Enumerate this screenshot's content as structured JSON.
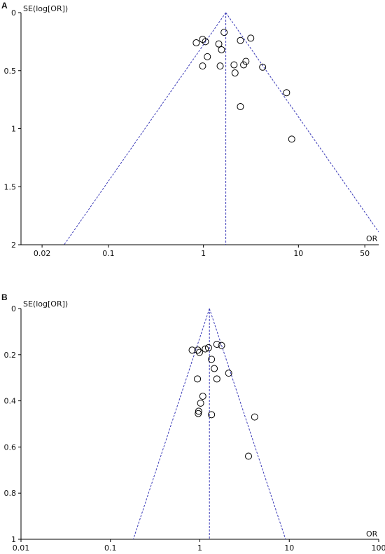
{
  "chart_data": [
    {
      "type": "scatter",
      "panel_label": "A",
      "ylabel": "SE(log[OR])",
      "xlabel": "OR",
      "x_scale": "log",
      "y_inverted": true,
      "xlim": [
        0.012,
        70
      ],
      "ylim": [
        0,
        2
      ],
      "x_ticks": [
        0.02,
        0.1,
        1,
        10,
        50
      ],
      "x_tick_labels": [
        "0.02",
        "0.1",
        "1",
        "10",
        "50"
      ],
      "y_ticks": [
        0,
        0.5,
        1,
        1.5,
        2
      ],
      "y_tick_labels": [
        "0",
        "0.5",
        "1",
        "1.5",
        "2"
      ],
      "pooled_or": 1.72,
      "funnel_se_max": 2,
      "points": [
        {
          "x": 0.84,
          "y": 0.26
        },
        {
          "x": 0.98,
          "y": 0.23
        },
        {
          "x": 1.05,
          "y": 0.25
        },
        {
          "x": 1.65,
          "y": 0.17
        },
        {
          "x": 1.45,
          "y": 0.27
        },
        {
          "x": 1.55,
          "y": 0.32
        },
        {
          "x": 2.45,
          "y": 0.24
        },
        {
          "x": 3.15,
          "y": 0.22
        },
        {
          "x": 1.1,
          "y": 0.38
        },
        {
          "x": 0.98,
          "y": 0.46
        },
        {
          "x": 1.5,
          "y": 0.46
        },
        {
          "x": 2.1,
          "y": 0.45
        },
        {
          "x": 2.15,
          "y": 0.52
        },
        {
          "x": 2.8,
          "y": 0.42
        },
        {
          "x": 2.65,
          "y": 0.45
        },
        {
          "x": 4.2,
          "y": 0.47
        },
        {
          "x": 7.5,
          "y": 0.69
        },
        {
          "x": 2.45,
          "y": 0.81
        },
        {
          "x": 8.5,
          "y": 1.09
        }
      ]
    },
    {
      "type": "scatter",
      "panel_label": "B",
      "ylabel": "SE(log[OR])",
      "xlabel": "OR",
      "x_scale": "log",
      "y_inverted": true,
      "xlim": [
        0.01,
        100
      ],
      "ylim": [
        0,
        1
      ],
      "x_ticks": [
        0.01,
        0.1,
        1,
        10,
        100
      ],
      "x_tick_labels": [
        "0.01",
        "0.1",
        "1",
        "10",
        "100"
      ],
      "y_ticks": [
        0,
        0.2,
        0.4,
        0.6,
        0.8,
        1
      ],
      "y_tick_labels": [
        "0",
        "0.2",
        "0.4",
        "0.6",
        "0.8",
        "1"
      ],
      "pooled_or": 1.28,
      "funnel_se_max": 1,
      "points": [
        {
          "x": 0.82,
          "y": 0.18
        },
        {
          "x": 0.95,
          "y": 0.18
        },
        {
          "x": 0.99,
          "y": 0.19
        },
        {
          "x": 1.15,
          "y": 0.175
        },
        {
          "x": 1.25,
          "y": 0.17
        },
        {
          "x": 1.55,
          "y": 0.155
        },
        {
          "x": 1.75,
          "y": 0.16
        },
        {
          "x": 1.35,
          "y": 0.22
        },
        {
          "x": 1.45,
          "y": 0.26
        },
        {
          "x": 2.1,
          "y": 0.28
        },
        {
          "x": 0.94,
          "y": 0.305
        },
        {
          "x": 1.55,
          "y": 0.305
        },
        {
          "x": 1.08,
          "y": 0.38
        },
        {
          "x": 1.02,
          "y": 0.41
        },
        {
          "x": 0.97,
          "y": 0.445
        },
        {
          "x": 0.96,
          "y": 0.455
        },
        {
          "x": 1.35,
          "y": 0.46
        },
        {
          "x": 4.1,
          "y": 0.47
        },
        {
          "x": 3.5,
          "y": 0.64
        }
      ]
    }
  ],
  "colors": {
    "axis": "#000000",
    "funnel": "#3b3bb8",
    "marker": "#000000"
  }
}
